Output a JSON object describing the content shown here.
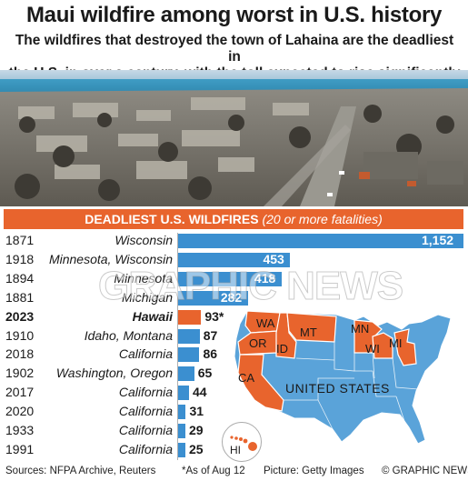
{
  "header": {
    "title": "Maui wildfire among worst in U.S. history",
    "subtitle_line1": "The wildfires that destroyed the town of Lahaina are the deadliest in",
    "subtitle_line2": "the U.S. in over a century, with the toll expected to rise significantly"
  },
  "band": {
    "label": "DEADLIEST U.S. WILDFIRES",
    "note": "(20 or more fatalities)"
  },
  "chart_data": {
    "type": "bar",
    "orientation": "horizontal",
    "title": "DEADLIEST U.S. WILDFIRES (20 or more fatalities)",
    "categories": [
      "1871",
      "1918",
      "1894",
      "1881",
      "2023",
      "1910",
      "2018",
      "1902",
      "2017",
      "2020",
      "1933",
      "1991"
    ],
    "locations": [
      "Wisconsin",
      "Minnesota, Wisconsin",
      "Minnesota",
      "Michigan",
      "Hawaii",
      "Idaho, Montana",
      "California",
      "Washington, Oregon",
      "California",
      "California",
      "California",
      "California"
    ],
    "values": [
      1152,
      453,
      418,
      282,
      93,
      87,
      86,
      65,
      44,
      31,
      29,
      25
    ],
    "value_labels": [
      "1,152",
      "453",
      "418",
      "282",
      "93*",
      "87",
      "86",
      "65",
      "44",
      "31",
      "29",
      "25"
    ],
    "highlight_index": 4,
    "colors": {
      "bar": "#3b8fd0",
      "highlight": "#e8642d"
    }
  },
  "map": {
    "country_label": "UNITED STATES",
    "states": [
      "WA",
      "OR",
      "ID",
      "MT",
      "CA",
      "MN",
      "WI",
      "MI"
    ],
    "inset_label": "HI",
    "colors": {
      "base": "#5aa3d9",
      "highlight": "#e8642d"
    }
  },
  "watermark": "GRAPHIC NEWS",
  "footer": {
    "sources": "Sources: NFPA Archive, Reuters",
    "note": "*As of Aug 12",
    "picture": "Picture: Getty Images",
    "credit": "© GRAPHIC NEWS"
  }
}
